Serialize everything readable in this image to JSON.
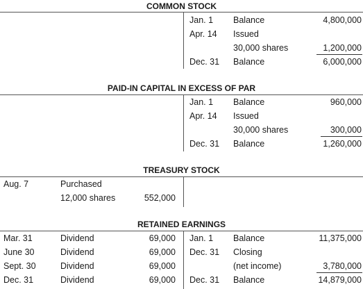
{
  "accounts": [
    {
      "title": "COMMON STOCK",
      "credit": [
        {
          "date": "Jan.  1",
          "desc": "Balance",
          "amount": "4,800,000"
        },
        {
          "date": "Apr. 14",
          "desc": "Issued",
          "amount": ""
        },
        {
          "date": "",
          "desc": "30,000 shares",
          "amount": "1,200,000"
        },
        {
          "date": "Dec. 31",
          "desc": "Balance",
          "amount": "6,000,000"
        }
      ]
    },
    {
      "title": "PAID-IN CAPITAL IN EXCESS OF PAR",
      "credit": [
        {
          "date": "Jan.  1",
          "desc": "Balance",
          "amount": "960,000"
        },
        {
          "date": "Apr. 14",
          "desc": "Issued",
          "amount": ""
        },
        {
          "date": "",
          "desc": "30,000 shares",
          "amount": "300,000"
        },
        {
          "date": "Dec. 31",
          "desc": "Balance",
          "amount": "1,260,000"
        }
      ]
    },
    {
      "title": "TREASURY STOCK",
      "debit": [
        {
          "date": "Aug.   7",
          "desc": "Purchased",
          "amount": ""
        },
        {
          "date": "",
          "desc": "12,000 shares",
          "amount": "552,000"
        }
      ]
    },
    {
      "title": "RETAINED EARNINGS",
      "debit": [
        {
          "date": "Mar.  31",
          "desc": "Dividend",
          "amount": "69,000"
        },
        {
          "date": "June 30",
          "desc": "Dividend",
          "amount": "69,000"
        },
        {
          "date": "Sept. 30",
          "desc": "Dividend",
          "amount": "69,000"
        },
        {
          "date": "Dec.  31",
          "desc": "Dividend",
          "amount": "69,000"
        }
      ],
      "credit": [
        {
          "date": "Jan.  1",
          "desc": "Balance",
          "amount": "11,375,000"
        },
        {
          "date": "Dec. 31",
          "desc": "Closing",
          "amount": ""
        },
        {
          "date": "",
          "desc": "(net income)",
          "amount": "3,780,000"
        },
        {
          "date": "Dec. 31",
          "desc": "Balance",
          "amount": "14,879,000"
        }
      ]
    }
  ]
}
